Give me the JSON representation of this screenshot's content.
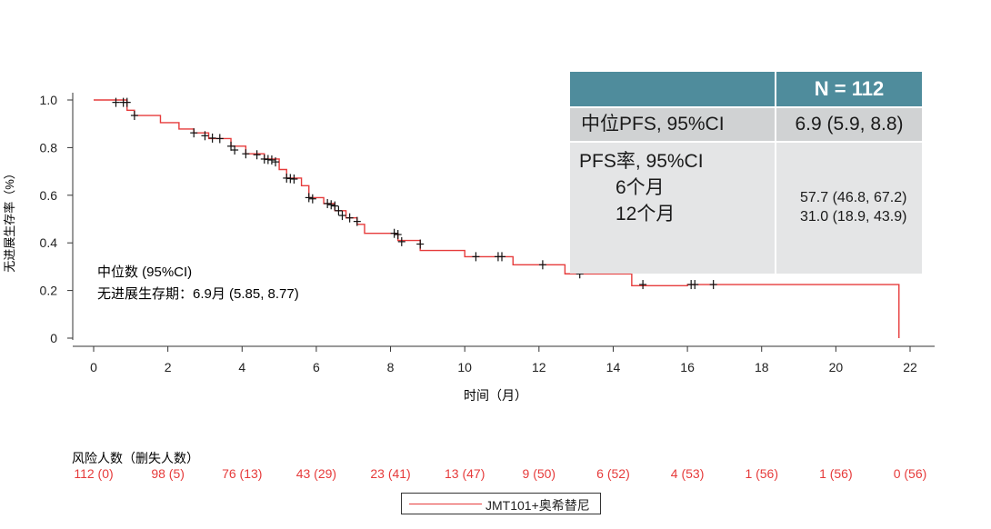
{
  "chart_data": {
    "type": "line",
    "step": true,
    "xlabel": "时间（月）",
    "ylabel": "无进展生存率（%）",
    "xlim": [
      0,
      22
    ],
    "ylim": [
      0,
      1.0
    ],
    "xticks": [
      "0",
      "2",
      "4",
      "6",
      "8",
      "10",
      "12",
      "14",
      "16",
      "18",
      "20",
      "22"
    ],
    "yticks": [
      "0",
      "0.2",
      "0.4",
      "0.6",
      "0.8",
      "1.0"
    ],
    "series": [
      {
        "name": "JMT101+奥希替尼",
        "color": "#e63b3b",
        "x": [
          0,
          0.9,
          1.1,
          1.8,
          2.3,
          2.7,
          3.1,
          3.7,
          4.1,
          4.6,
          5.0,
          5.2,
          5.6,
          5.8,
          6.2,
          6.5,
          6.8,
          7.1,
          7.3,
          8.2,
          8.8,
          10.0,
          11.3,
          12.7,
          14.5,
          16.0,
          21.7
        ],
        "y": [
          1.0,
          0.957,
          0.935,
          0.905,
          0.878,
          0.862,
          0.838,
          0.806,
          0.774,
          0.752,
          0.708,
          0.672,
          0.64,
          0.59,
          0.565,
          0.535,
          0.505,
          0.478,
          0.44,
          0.41,
          0.368,
          0.342,
          0.308,
          0.27,
          0.22,
          0.225,
          0.0
        ],
        "censor_x": [
          0.6,
          0.8,
          0.9,
          1.1,
          2.7,
          3.0,
          3.2,
          3.4,
          3.7,
          3.8,
          4.1,
          4.4,
          4.6,
          4.7,
          4.8,
          4.9,
          5.2,
          5.3,
          5.4,
          5.8,
          5.9,
          6.3,
          6.4,
          6.5,
          6.6,
          6.7,
          6.9,
          7.1,
          8.1,
          8.2,
          8.3,
          8.8,
          10.3,
          10.9,
          11.0,
          12.1,
          13.1,
          14.8,
          16.1,
          16.2,
          16.7
        ],
        "censor_y": [
          0.99,
          0.99,
          0.99,
          0.935,
          0.862,
          0.85,
          0.84,
          0.838,
          0.806,
          0.79,
          0.774,
          0.77,
          0.752,
          0.75,
          0.748,
          0.74,
          0.672,
          0.67,
          0.668,
          0.59,
          0.585,
          0.565,
          0.56,
          0.555,
          0.535,
          0.515,
          0.505,
          0.49,
          0.44,
          0.435,
          0.405,
          0.395,
          0.342,
          0.342,
          0.342,
          0.308,
          0.27,
          0.225,
          0.225,
          0.225,
          0.225
        ]
      }
    ],
    "annotation_lines": [
      "中位数 (95%CI)",
      "无进展生存期：6.9月 (5.85, 8.77)"
    ],
    "risk_table": {
      "title": "风险人数（删失人数）",
      "color": "#e63b3b",
      "values": [
        "112 (0)",
        "98 (5)",
        "76 (13)",
        "43 (29)",
        "23 (41)",
        "13 (47)",
        "9 (50)",
        "6 (52)",
        "4 (53)",
        "1 (56)",
        "1 (56)",
        "0 (56)"
      ]
    },
    "legend": {
      "position": "bottom",
      "label": "JMT101+奥希替尼"
    },
    "grid": false
  },
  "summary_table": {
    "header": "N = 112",
    "row1_label": "中位PFS, 95%CI",
    "row1_value": "6.9 (5.9, 8.8)",
    "row2_label": "PFS率, 95%CI",
    "row2_sub1": "6个月",
    "row2_sub2": "12个月",
    "row2_val1": "57.7 (46.8, 67.2)",
    "row2_val2": "31.0 (18.9, 43.9)",
    "header_color": "#4f8c9c"
  }
}
